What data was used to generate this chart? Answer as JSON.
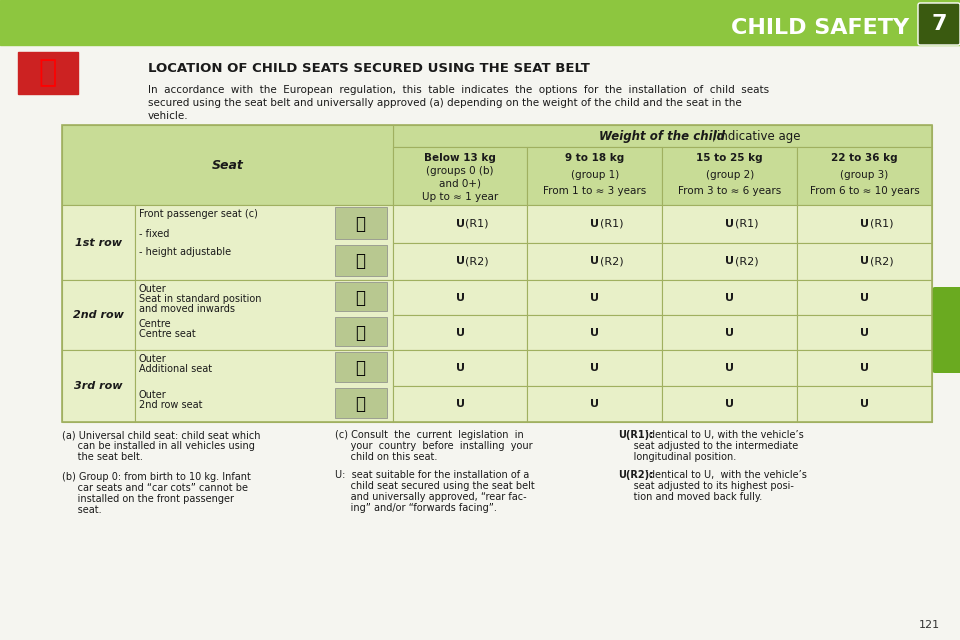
{
  "title": "CHILD SAFETY",
  "section_title": "LOCATION OF CHILD SEATS SECURED USING THE SEAT BELT",
  "intro_text": "In  accordance  with  the  European  regulation,  this  table  indicates  the  options  for  the  installation  of  child  seats\nsecured using the seat belt and universally approved (a) depending on the weight of the child and the seat in the\nvehicle.",
  "header_bg": "#c8dc96",
  "row_bg_light": "#e8f0c8",
  "row_bg_dark": "#d4e490",
  "top_bar_color": "#8dc63f",
  "page_bg": "#f5f5f0",
  "table_border": "#a0b060",
  "weight_header": "Weight of the child",
  "weight_subheader": "/indicative age",
  "col_headers": [
    "Seat",
    "Below 13 kg\n(groups 0 (b)\nand 0+)\nUp to ≈ 1 year",
    "9 to 18 kg\n(group 1)\nFrom 1 to ≈ 3 years",
    "15 to 25 kg\n(group 2)\nFrom 3 to ≈ 6 years",
    "22 to 36 kg\n(group 3)\nFrom 6 to ≈ 10 years"
  ],
  "rows": [
    {
      "row_label": "1st row",
      "sub_rows": [
        {
          "seat_label": "Front passenger seat (c)\n\n- fixed",
          "values": [
            "U(R1)",
            "U(R1)",
            "U(R1)",
            "U(R1)"
          ]
        },
        {
          "seat_label": "- height adjustable",
          "values": [
            "U(R2)",
            "U(R2)",
            "U(R2)",
            "U(R2)"
          ]
        }
      ]
    },
    {
      "row_label": "2nd row",
      "sub_rows": [
        {
          "seat_label": "Outer\nSeat in standard position\nand moved inwards",
          "values": [
            "U",
            "U",
            "U",
            "U"
          ]
        },
        {
          "seat_label": "Centre\nCentre seat",
          "values": [
            "U",
            "U",
            "U",
            "U"
          ]
        }
      ]
    },
    {
      "row_label": "3rd row",
      "sub_rows": [
        {
          "seat_label": "Outer\nAdditional seat",
          "values": [
            "U",
            "U",
            "U",
            "U"
          ]
        },
        {
          "seat_label": "Outer\n2nd row seat",
          "values": [
            "U",
            "U",
            "U",
            "U"
          ]
        }
      ]
    }
  ],
  "footnotes": [
    "(a) Universal child seat: child seat which\n    can be installed in all vehicles using\n    the seat belt.",
    "(b) Group 0: from birth to 10 kg. Infant\n    car seats and “car cots” cannot be\n    installed on the front passenger\n    seat.",
    "(c) Consult  the  current  legislation  in\n    your  country  before  installing  your\n    child on this seat.",
    "U:  seat suitable for the installation of a\n    child seat secured using the seat belt\n    and universally approved, “rear fac-\n    ing” and/or “forwards facing”.",
    "U(R1): identical to U, with the vehicle’s\n    seat adjusted to the intermediate\n    longitudinal position.",
    "U(R2): identical to U,  with the vehicle’s\n    seat adjusted to its highest posi-\n    tion and moved back fully."
  ],
  "page_number": "121"
}
